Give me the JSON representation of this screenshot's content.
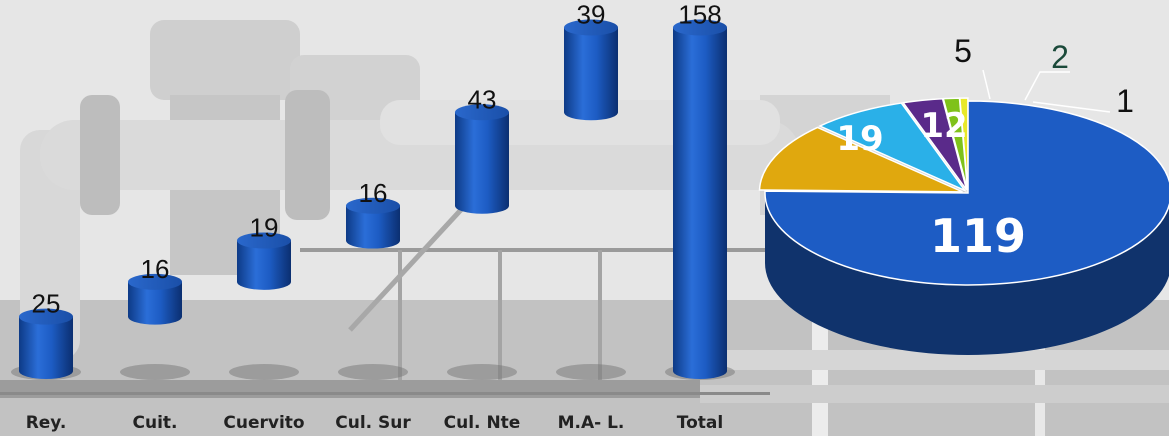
{
  "chart_data": [
    {
      "type": "bar",
      "categories": [
        "Rey.",
        "Cuit.",
        "Cuervito",
        "Cul. Sur",
        "Cul. Nte",
        "M.A- L.",
        "Total"
      ],
      "values": [
        25,
        16,
        19,
        16,
        43,
        39,
        158
      ],
      "data_labels": [
        "25",
        "16",
        "19",
        "16",
        "43",
        "39",
        "158"
      ],
      "style": "3d cylinder waterfall",
      "color": "#1a56b8"
    },
    {
      "type": "pie",
      "values": [
        119,
        19,
        12,
        5,
        2,
        1
      ],
      "data_labels": [
        "119",
        "19",
        "12",
        "5",
        "2",
        "1"
      ],
      "colors": [
        "#1d5cc4",
        "#e0a80e",
        "#2ab0e8",
        "#5a2a8a",
        "#7fc21a",
        "#e8e82a"
      ]
    }
  ]
}
